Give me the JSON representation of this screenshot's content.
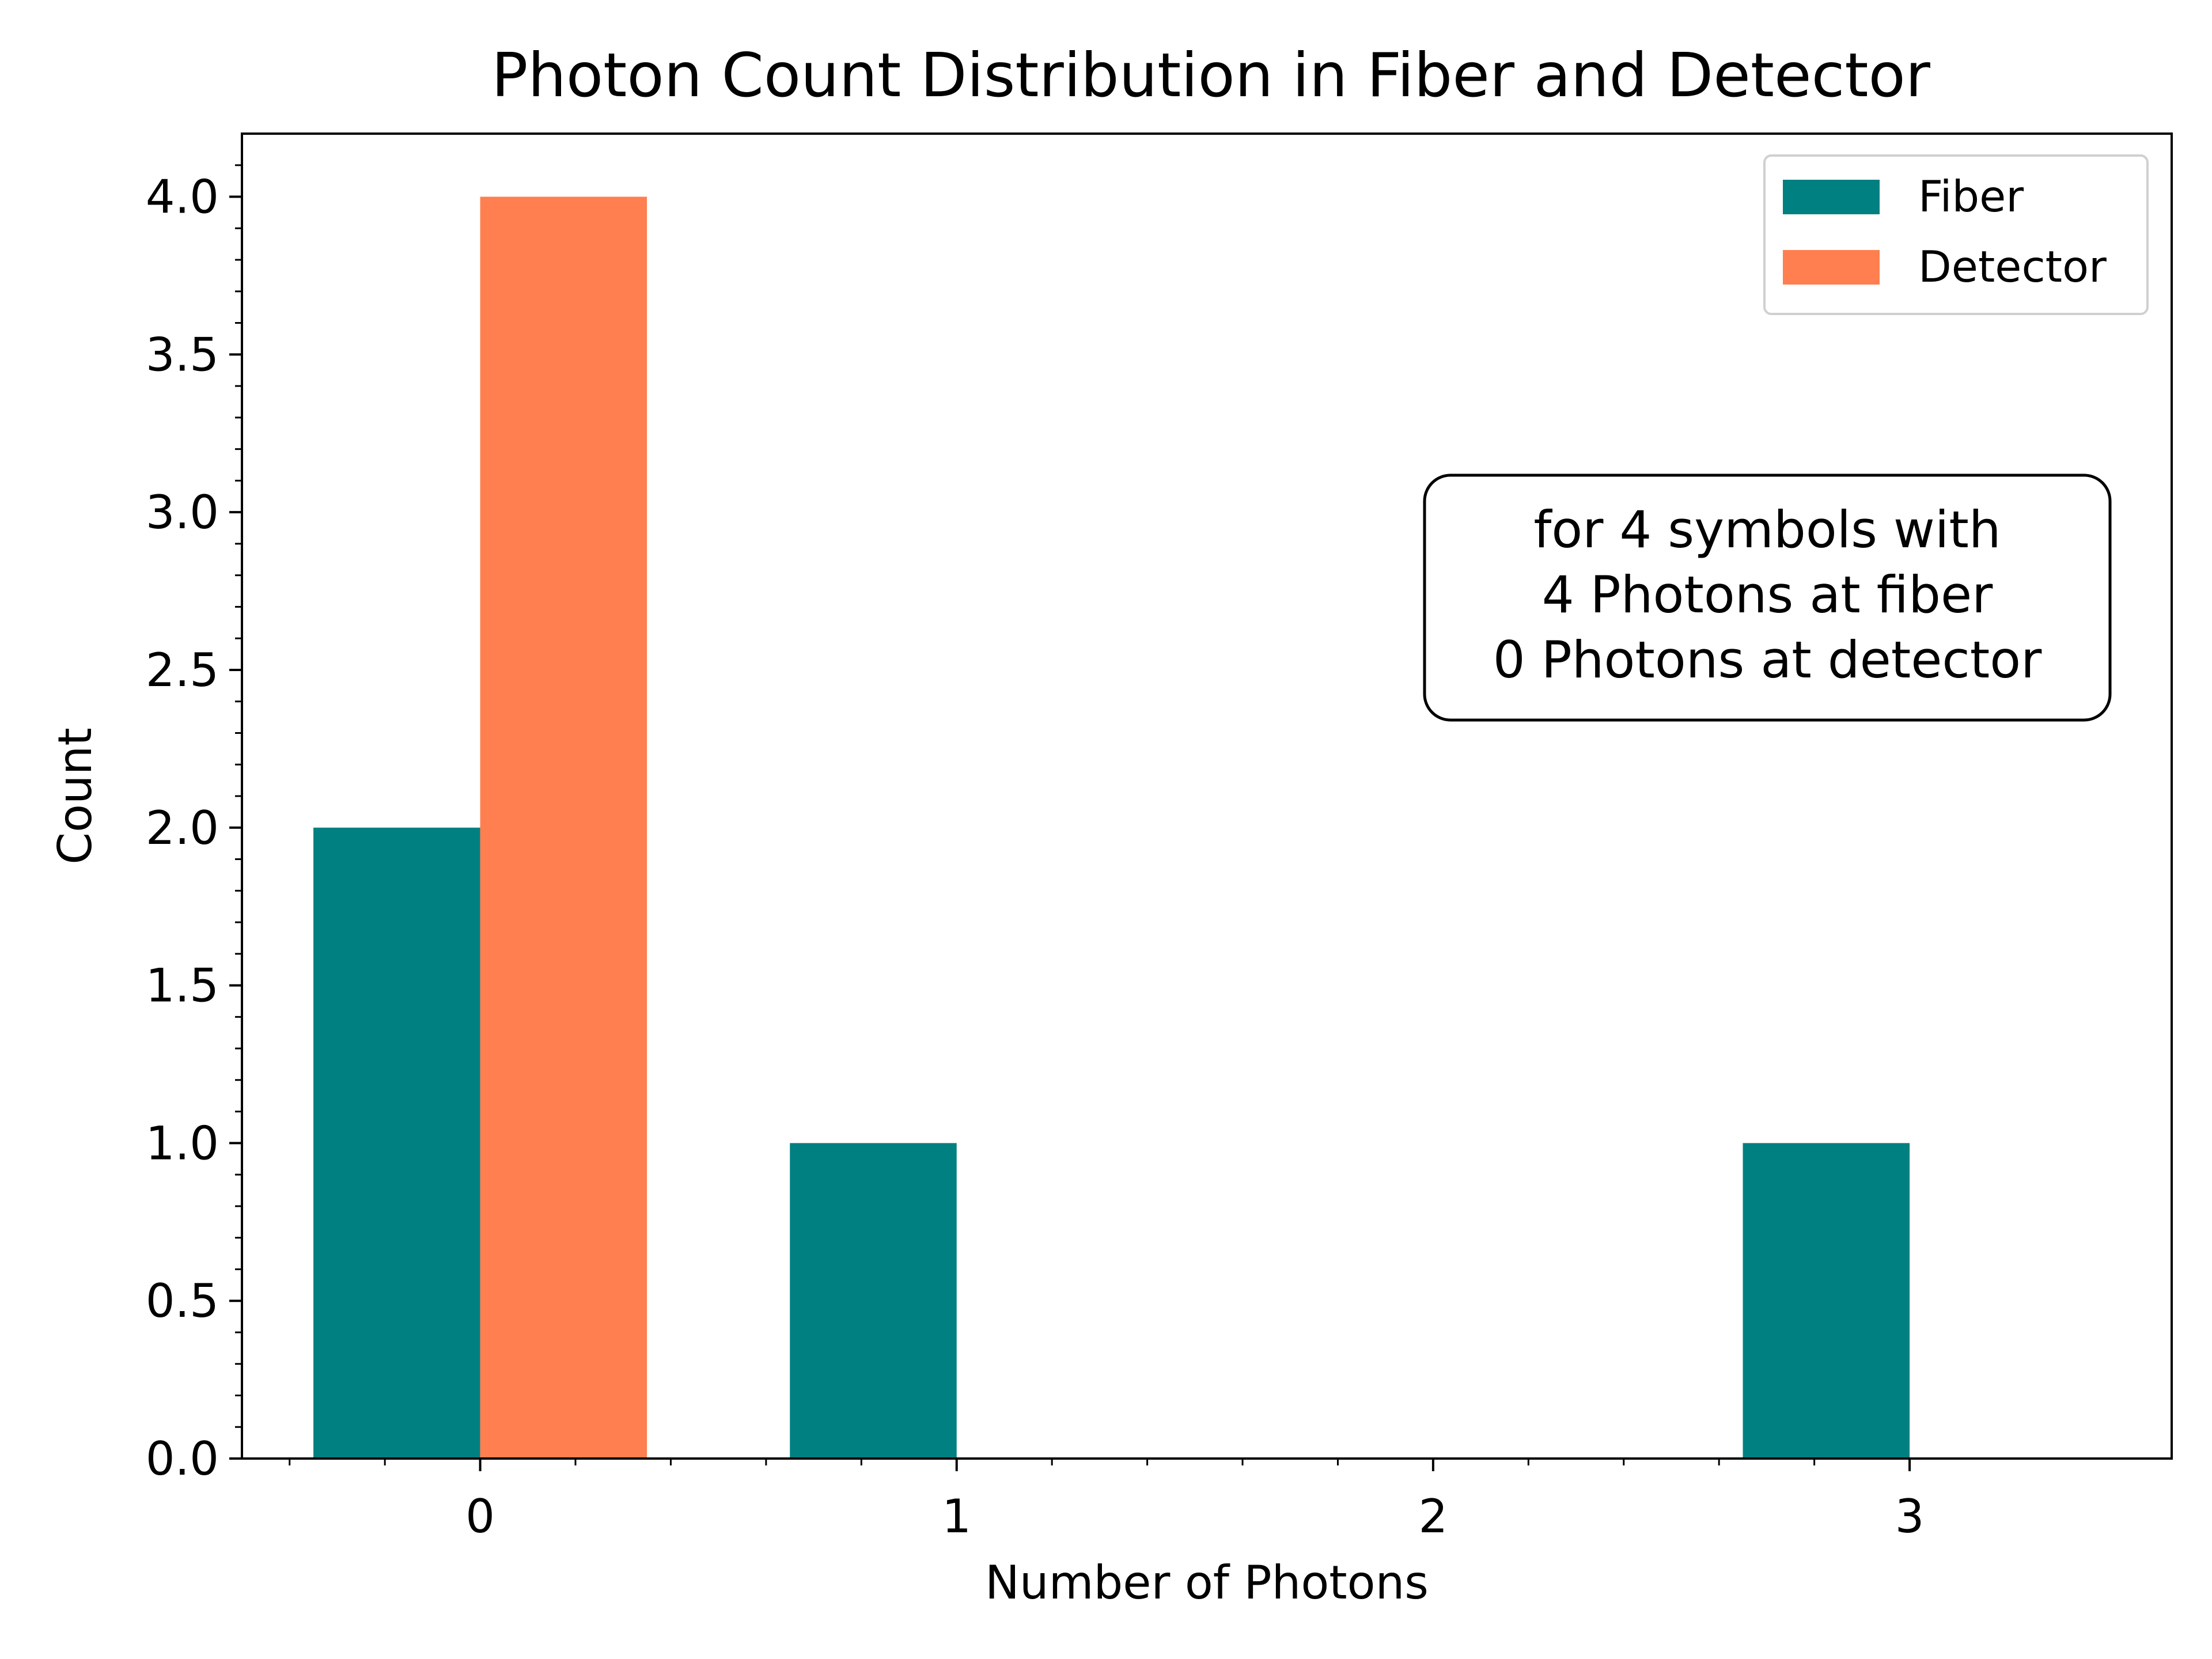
{
  "chart_data": {
    "type": "bar",
    "title": "Photon Count Distribution in Fiber and Detector",
    "xlabel": "Number of Photons",
    "ylabel": "Count",
    "categories": [
      0,
      1,
      2,
      3
    ],
    "series": [
      {
        "name": "Fiber",
        "color": "#008080",
        "values": [
          2,
          1,
          0,
          1
        ]
      },
      {
        "name": "Detector",
        "color": "#ff7f50",
        "values": [
          4,
          0,
          0,
          0
        ]
      }
    ],
    "xlim": [
      -0.5,
      3.55
    ],
    "ylim": [
      0,
      4.2
    ],
    "yticks": [
      "0.0",
      "0.5",
      "1.0",
      "1.5",
      "2.0",
      "2.5",
      "3.0",
      "3.5",
      "4.0"
    ],
    "xticks": [
      "0",
      "1",
      "2",
      "3"
    ],
    "legend_position": "top-right",
    "grid": false,
    "annotation": {
      "lines": [
        "for 4 symbols with",
        "4 Photons at fiber",
        "0 Photons at detector"
      ],
      "position": "right"
    }
  }
}
